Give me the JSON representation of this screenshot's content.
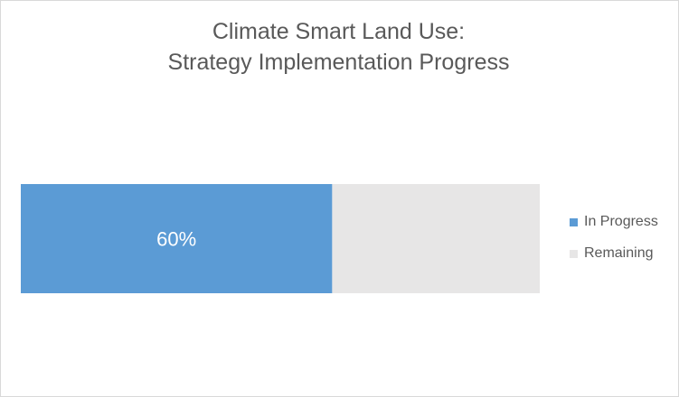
{
  "chart_data": {
    "type": "bar",
    "orientation": "horizontal",
    "stacked": true,
    "title": "Climate Smart Land Use:",
    "subtitle": "Strategy Implementation Progress",
    "categories": [
      ""
    ],
    "series": [
      {
        "name": "In Progress",
        "values": [
          60
        ],
        "color": "#5b9bd5",
        "data_label": "60%"
      },
      {
        "name": "Remaining",
        "values": [
          40
        ],
        "color": "#e7e6e6",
        "data_label": ""
      }
    ],
    "xlim": [
      0,
      100
    ],
    "grid": false,
    "legend_position": "right"
  }
}
